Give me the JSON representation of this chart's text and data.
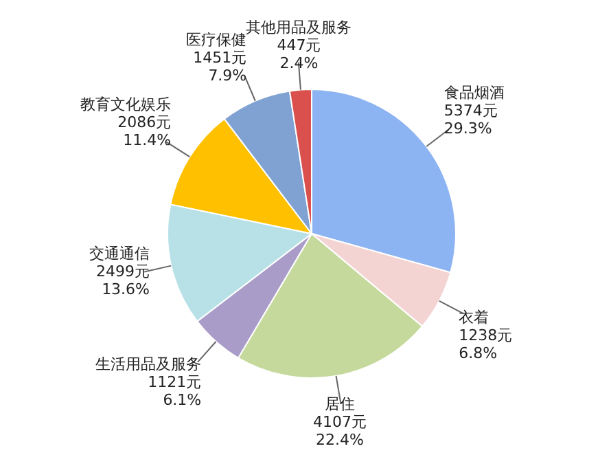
{
  "chart_data": {
    "type": "pie",
    "categories": [
      "食品烟酒",
      "衣着",
      "居住",
      "生活用品及服务",
      "交通通信",
      "教育文化娱乐",
      "医疗保健",
      "其他用品及服务"
    ],
    "values": [
      5374,
      1238,
      4107,
      1121,
      2499,
      2086,
      1451,
      447
    ],
    "value_labels": [
      "5374元\n29.3%",
      "1238元\n6.8%",
      "4107元\n22.4%",
      "1121元\n6.1%",
      "2499元\n13.6%",
      "2086元\n11.4%",
      "1451元\n7.9%",
      "447元\n2.4%"
    ],
    "colors": [
      "#8db4f2",
      "#f4d3d3",
      "#c5d99c",
      "#a99cc8",
      "#b8e1e7",
      "#ffc000",
      "#7fa2d2",
      "#d9504c"
    ]
  }
}
